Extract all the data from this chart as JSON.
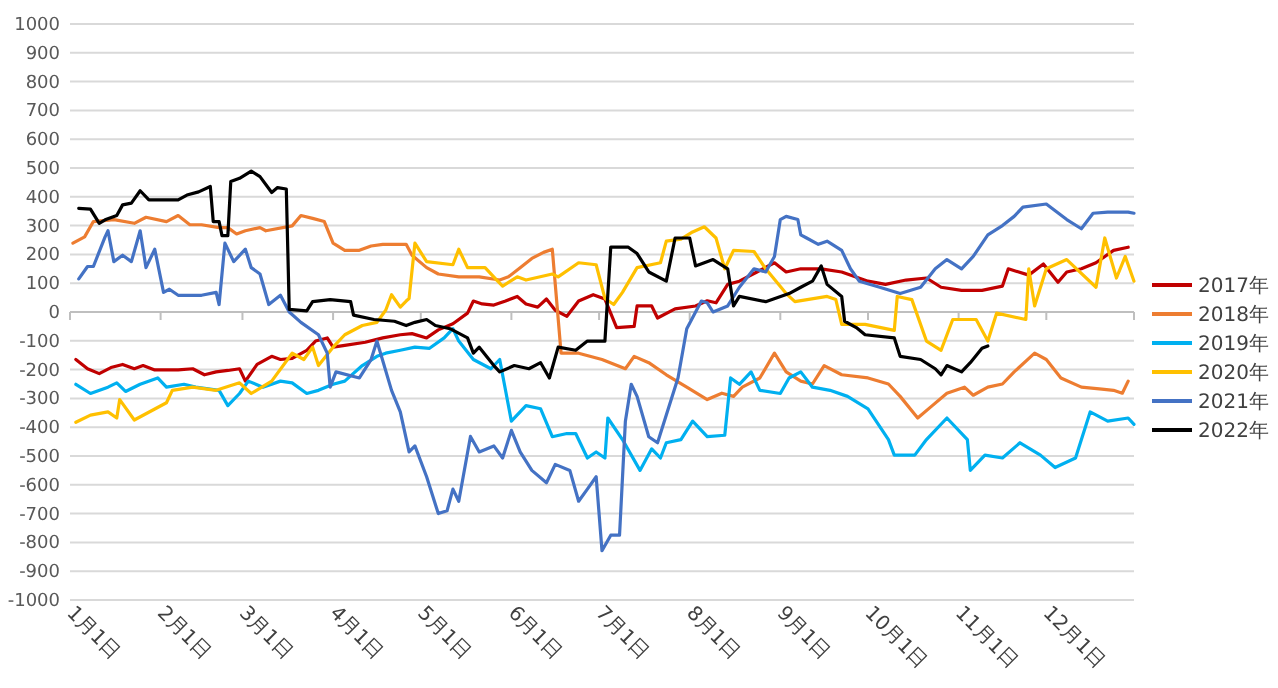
{
  "chart_data": {
    "type": "line",
    "legend": "right",
    "grid": "y",
    "xlim": [
      "--01-01",
      "--12-31"
    ],
    "ylim": [
      -1000,
      1000
    ],
    "yticks": [
      -1000,
      -900,
      -800,
      -700,
      -600,
      -500,
      -400,
      -300,
      -200,
      -100,
      0,
      100,
      200,
      300,
      400,
      500,
      600,
      700,
      800,
      900,
      1000
    ],
    "xticks": [
      {
        "value": "--01-01",
        "label": "1月1日"
      },
      {
        "value": "--02-01",
        "label": "2月1日"
      },
      {
        "value": "--03-01",
        "label": "3月1日"
      },
      {
        "value": "--04-01",
        "label": "4月1日"
      },
      {
        "value": "--05-01",
        "label": "5月1日"
      },
      {
        "value": "--06-01",
        "label": "6月1日"
      },
      {
        "value": "--07-01",
        "label": "7月1日"
      },
      {
        "value": "--08-01",
        "label": "8月1日"
      },
      {
        "value": "--09-01",
        "label": "9月1日"
      },
      {
        "value": "--10-01",
        "label": "10月1日"
      },
      {
        "value": "--11-01",
        "label": "11月1日"
      },
      {
        "value": "--12-01",
        "label": "12月1日"
      }
    ],
    "series": [
      {
        "name": "2017年",
        "color": "#c00000",
        "x": [
          "--01-03",
          "--01-07",
          "--01-11",
          "--01-15",
          "--01-19",
          "--01-23",
          "--01-26",
          "--01-30",
          "--02-07",
          "--02-12",
          "--02-16",
          "--02-20",
          "--02-24",
          "--02-28",
          "--03-02",
          "--03-06",
          "--03-11",
          "--03-14",
          "--03-18",
          "--03-23",
          "--03-26",
          "--03-30",
          "--04-01",
          "--04-05",
          "--04-12",
          "--04-18",
          "--04-24",
          "--04-28",
          "--05-03",
          "--05-07",
          "--05-12",
          "--05-17",
          "--05-19",
          "--05-22",
          "--05-26",
          "--05-30",
          "--06-03",
          "--06-06",
          "--06-10",
          "--06-13",
          "--06-16",
          "--06-20",
          "--06-24",
          "--06-29",
          "--07-03",
          "--07-07",
          "--07-13",
          "--07-14",
          "--07-19",
          "--07-21",
          "--07-27",
          "--08-03",
          "--08-07",
          "--08-10",
          "--08-14",
          "--08-18",
          "--08-24",
          "--08-30",
          "--09-03",
          "--09-08",
          "--09-15",
          "--09-22",
          "--10-01",
          "--10-07",
          "--10-14",
          "--10-21",
          "--10-26",
          "--11-02",
          "--11-09",
          "--11-16",
          "--11-18",
          "--11-25",
          "--11-30",
          "--12-05",
          "--12-08",
          "--12-13",
          "--12-18",
          "--12-24",
          "--12-29"
        ],
        "values": [
          -165,
          -197,
          -214,
          -193,
          -182,
          -197,
          -186,
          -201,
          -201,
          -197,
          -218,
          -208,
          -203,
          -197,
          -240,
          -182,
          -154,
          -165,
          -161,
          -133,
          -101,
          -90,
          -122,
          -116,
          -105,
          -90,
          -79,
          -75,
          -90,
          -62,
          -41,
          -4,
          38,
          28,
          24,
          38,
          54,
          28,
          17,
          45,
          6,
          -15,
          38,
          60,
          45,
          -54,
          -50,
          21,
          21,
          -21,
          11,
          21,
          39,
          32,
          96,
          107,
          139,
          171,
          139,
          150,
          150,
          139,
          107,
          96,
          111,
          118,
          86,
          75,
          75,
          90,
          150,
          128,
          167,
          103,
          139,
          150,
          171,
          214,
          225
        ]
      },
      {
        "name": "2018年",
        "color": "#ed7d31",
        "x": [
          "--01-02",
          "--01-06",
          "--01-09",
          "--01-16",
          "--01-23",
          "--01-27",
          "--02-03",
          "--02-07",
          "--02-11",
          "--02-15",
          "--02-21",
          "--02-24",
          "--02-27",
          "--03-02",
          "--03-07",
          "--03-09",
          "--03-18",
          "--03-21",
          "--03-25",
          "--03-29",
          "--04-01",
          "--04-05",
          "--04-10",
          "--04-14",
          "--04-18",
          "--04-26",
          "--04-28",
          "--05-03",
          "--05-07",
          "--05-14",
          "--05-21",
          "--05-28",
          "--05-31",
          "--06-04",
          "--06-08",
          "--06-12",
          "--06-15",
          "--06-18",
          "--06-24",
          "--07-02",
          "--07-10",
          "--07-13",
          "--07-18",
          "--07-24",
          "--07-31",
          "--08-07",
          "--08-12",
          "--08-16",
          "--08-19",
          "--08-25",
          "--08-30",
          "--09-03",
          "--09-08",
          "--09-12",
          "--09-16",
          "--09-22",
          "--10-01",
          "--10-08",
          "--10-12",
          "--10-18",
          "--10-23",
          "--10-28",
          "--11-03",
          "--11-06",
          "--11-11",
          "--11-16",
          "--11-20",
          "--11-27",
          "--12-01",
          "--12-06",
          "--12-13",
          "--12-20",
          "--12-24",
          "--12-27",
          "--12-29"
        ],
        "values": [
          239,
          261,
          314,
          321,
          308,
          329,
          314,
          335,
          303,
          303,
          293,
          293,
          271,
          282,
          293,
          282,
          299,
          335,
          325,
          314,
          239,
          214,
          214,
          229,
          235,
          235,
          197,
          154,
          132,
          122,
          122,
          111,
          122,
          154,
          186,
          207,
          218,
          -143,
          -143,
          -165,
          -197,
          -154,
          -176,
          -218,
          -261,
          -304,
          -282,
          -293,
          -261,
          -229,
          -143,
          -208,
          -240,
          -250,
          -186,
          -218,
          -229,
          -250,
          -293,
          -368,
          -325,
          -282,
          -261,
          -289,
          -261,
          -250,
          -208,
          -143,
          -165,
          -229,
          -261,
          -268,
          -272,
          -282,
          -240
        ]
      },
      {
        "name": "2019年",
        "color": "#00b0f0",
        "x": [
          "--01-03",
          "--01-08",
          "--01-14",
          "--01-17",
          "--01-20",
          "--01-25",
          "--01-31",
          "--02-03",
          "--02-09",
          "--02-13",
          "--02-21",
          "--02-24",
          "--02-28",
          "--03-03",
          "--03-08",
          "--03-14",
          "--03-18",
          "--03-23",
          "--03-27",
          "--04-01",
          "--04-05",
          "--04-11",
          "--04-16",
          "--04-19",
          "--04-24",
          "--04-29",
          "--05-04",
          "--05-09",
          "--05-12",
          "--05-14",
          "--05-19",
          "--05-25",
          "--05-28",
          "--06-01",
          "--06-06",
          "--06-11",
          "--06-15",
          "--06-20",
          "--06-23",
          "--06-27",
          "--06-30",
          "--07-03",
          "--07-04",
          "--07-09",
          "--07-15",
          "--07-19",
          "--07-22",
          "--07-24",
          "--07-29",
          "--08-02",
          "--08-07",
          "--08-13",
          "--08-15",
          "--08-18",
          "--08-22",
          "--08-25",
          "--09-01",
          "--09-04",
          "--09-08",
          "--09-12",
          "--09-18",
          "--09-24",
          "--10-01",
          "--10-08",
          "--10-10",
          "--10-17",
          "--10-21",
          "--10-28",
          "--11-04",
          "--11-05",
          "--11-10",
          "--11-16",
          "--11-22",
          "--11-29",
          "--12-04",
          "--12-11",
          "--12-16",
          "--12-22",
          "--12-29",
          "--12-31"
        ],
        "values": [
          -251,
          -283,
          -261,
          -246,
          -276,
          -251,
          -229,
          -261,
          -251,
          -261,
          -272,
          -325,
          -283,
          -240,
          -261,
          -240,
          -246,
          -283,
          -272,
          -251,
          -240,
          -186,
          -154,
          -143,
          -133,
          -122,
          -126,
          -90,
          -58,
          -101,
          -165,
          -197,
          -165,
          -379,
          -325,
          -336,
          -433,
          -422,
          -422,
          -507,
          -486,
          -507,
          -368,
          -443,
          -550,
          -475,
          -507,
          -454,
          -443,
          -379,
          -433,
          -428,
          -229,
          -251,
          -208,
          -272,
          -283,
          -229,
          -208,
          -261,
          -272,
          -293,
          -336,
          -443,
          -497,
          -497,
          -443,
          -368,
          -443,
          -550,
          -497,
          -507,
          -454,
          -497,
          -540,
          -507,
          -347,
          -379,
          -368,
          -390
        ]
      },
      {
        "name": "2020年",
        "color": "#ffc000",
        "x": [
          "--01-03",
          "--01-08",
          "--01-14",
          "--01-17",
          "--01-18",
          "--01-23",
          "--02-03",
          "--02-05",
          "--02-12",
          "--02-20",
          "--02-28",
          "--03-04",
          "--03-11",
          "--03-18",
          "--03-22",
          "--03-25",
          "--03-27",
          "--04-01",
          "--04-05",
          "--04-11",
          "--04-16",
          "--04-19",
          "--04-21",
          "--04-24",
          "--04-26",
          "--04-27",
          "--04-29",
          "--05-03",
          "--05-12",
          "--05-14",
          "--05-17",
          "--05-23",
          "--05-27",
          "--05-29",
          "--06-03",
          "--06-06",
          "--06-15",
          "--06-17",
          "--06-24",
          "--06-30",
          "--07-03",
          "--07-06",
          "--07-09",
          "--07-14",
          "--07-22",
          "--07-24",
          "--07-29",
          "--08-02",
          "--08-06",
          "--08-10",
          "--08-13",
          "--08-16",
          "--08-23",
          "--08-27",
          "--09-03",
          "--09-06",
          "--09-17",
          "--09-20",
          "--09-22",
          "--09-30",
          "--10-10",
          "--10-11",
          "--10-16",
          "--10-21",
          "--10-26",
          "--10-30",
          "--11-07",
          "--11-11",
          "--11-14",
          "--11-24",
          "--11-25",
          "--11-27",
          "--12-01",
          "--12-08",
          "--12-18",
          "--12-21",
          "--12-25",
          "--12-28",
          "--12-31"
        ],
        "values": [
          -383,
          -358,
          -347,
          -368,
          -304,
          -375,
          -315,
          -272,
          -261,
          -272,
          -246,
          -283,
          -240,
          -143,
          -165,
          -122,
          -186,
          -122,
          -79,
          -47,
          -36,
          6,
          60,
          17,
          38,
          47,
          239,
          175,
          164,
          218,
          154,
          154,
          111,
          90,
          122,
          111,
          132,
          122,
          171,
          164,
          47,
          26,
          68,
          154,
          171,
          246,
          253,
          278,
          296,
          257,
          150,
          214,
          210,
          150,
          64,
          36,
          54,
          43,
          -43,
          -43,
          -64,
          54,
          43,
          -101,
          -133,
          -26,
          -26,
          -101,
          -4,
          -26,
          150,
          21,
          150,
          182,
          86,
          257,
          118,
          193,
          107
        ]
      },
      {
        "name": "2021年",
        "color": "#4472c4",
        "x": [
          "--01-04",
          "--01-07",
          "--01-09",
          "--01-13",
          "--01-14",
          "--01-16",
          "--01-19",
          "--01-22",
          "--01-25",
          "--01-27",
          "--01-30",
          "--02-02",
          "--02-04",
          "--02-07",
          "--02-15",
          "--02-20",
          "--02-21",
          "--02-23",
          "--02-26",
          "--03-02",
          "--03-04",
          "--03-07",
          "--03-10",
          "--03-14",
          "--03-17",
          "--03-21",
          "--03-27",
          "--03-30",
          "--03-31",
          "--04-02",
          "--04-10",
          "--04-14",
          "--04-16",
          "--04-21",
          "--04-24",
          "--04-27",
          "--04-29",
          "--05-03",
          "--05-07",
          "--05-10",
          "--05-12",
          "--05-14",
          "--05-18",
          "--05-21",
          "--05-26",
          "--05-29",
          "--06-01",
          "--06-04",
          "--06-08",
          "--06-13",
          "--06-16",
          "--06-21",
          "--06-24",
          "--06-27",
          "--06-30",
          "--07-02",
          "--07-05",
          "--07-08",
          "--07-10",
          "--07-12",
          "--07-14",
          "--07-18",
          "--07-21",
          "--07-24",
          "--07-28",
          "--07-31",
          "--08-05",
          "--08-07",
          "--08-09",
          "--08-14",
          "--08-18",
          "--08-23",
          "--08-27",
          "--08-30",
          "--09-01",
          "--09-03",
          "--09-07",
          "--09-08",
          "--09-10",
          "--09-14",
          "--09-17",
          "--09-22",
          "--09-25",
          "--09-28",
          "--10-05",
          "--10-12",
          "--10-19",
          "--10-24",
          "--10-28",
          "--11-02",
          "--11-06",
          "--11-11",
          "--11-16",
          "--11-20",
          "--11-23",
          "--12-01",
          "--12-08",
          "--12-13",
          "--12-17",
          "--12-22",
          "--12-29",
          "--12-31"
        ],
        "values": [
          115,
          158,
          158,
          261,
          282,
          175,
          197,
          175,
          282,
          154,
          218,
          68,
          79,
          58,
          58,
          68,
          26,
          239,
          175,
          218,
          154,
          132,
          26,
          58,
          0,
          -36,
          -79,
          -143,
          -261,
          -208,
          -229,
          -165,
          -101,
          -272,
          -347,
          -486,
          -465,
          -572,
          -700,
          -690,
          -615,
          -657,
          -432,
          -486,
          -465,
          -507,
          -411,
          -486,
          -550,
          -593,
          -529,
          -550,
          -657,
          -615,
          -572,
          -829,
          -775,
          -775,
          -379,
          -251,
          -293,
          -433,
          -454,
          -358,
          -229,
          -58,
          38,
          32,
          0,
          21,
          86,
          150,
          139,
          193,
          321,
          332,
          321,
          268,
          257,
          235,
          246,
          214,
          150,
          107,
          86,
          64,
          86,
          150,
          182,
          150,
          193,
          268,
          300,
          332,
          364,
          375,
          321,
          289,
          343,
          347,
          347,
          343
        ]
      },
      {
        "name": "2022年",
        "color": "#000000",
        "x": [
          "--01-04",
          "--01-08",
          "--01-11",
          "--01-13",
          "--01-17",
          "--01-19",
          "--01-22",
          "--01-25",
          "--01-28",
          "--02-07",
          "--02-10",
          "--02-14",
          "--02-18",
          "--02-19",
          "--02-21",
          "--02-22",
          "--02-24",
          "--02-25",
          "--02-28",
          "--03-04",
          "--03-07",
          "--03-11",
          "--03-13",
          "--03-16",
          "--03-17",
          "--03-23",
          "--03-25",
          "--03-31",
          "--04-07",
          "--04-08",
          "--04-15",
          "--04-22",
          "--04-26",
          "--04-29",
          "--05-03",
          "--05-06",
          "--05-11",
          "--05-17",
          "--05-19",
          "--05-21",
          "--05-26",
          "--05-28",
          "--06-02",
          "--06-07",
          "--06-11",
          "--06-14",
          "--06-17",
          "--06-23",
          "--06-27",
          "--07-03",
          "--07-05",
          "--07-11",
          "--07-14",
          "--07-18",
          "--07-24",
          "--07-27",
          "--08-01",
          "--08-03",
          "--08-09",
          "--08-14",
          "--08-16",
          "--08-18",
          "--08-27",
          "--09-04",
          "--09-08",
          "--09-12",
          "--09-15",
          "--09-17",
          "--09-22",
          "--09-23",
          "--09-27",
          "--09-30",
          "--10-10",
          "--10-12",
          "--10-19",
          "--10-24",
          "--10-26",
          "--10-28",
          "--11-02",
          "--11-05",
          "--11-09",
          "--11-11"
        ],
        "values": [
          360,
          357,
          308,
          320,
          335,
          372,
          378,
          421,
          389,
          389,
          406,
          417,
          436,
          314,
          314,
          265,
          265,
          453,
          464,
          489,
          470,
          415,
          432,
          427,
          9,
          4,
          36,
          43,
          36,
          -11,
          -26,
          -32,
          -47,
          -36,
          -26,
          -47,
          -58,
          -90,
          -143,
          -122,
          -186,
          -208,
          -186,
          -197,
          -176,
          -229,
          -122,
          -133,
          -101,
          -101,
          225,
          225,
          203,
          139,
          107,
          257,
          257,
          160,
          182,
          150,
          21,
          54,
          36,
          64,
          86,
          107,
          160,
          96,
          54,
          -32,
          -54,
          -79,
          -90,
          -154,
          -165,
          -197,
          -218,
          -186,
          -208,
          -176,
          -126,
          -118
        ]
      }
    ]
  }
}
